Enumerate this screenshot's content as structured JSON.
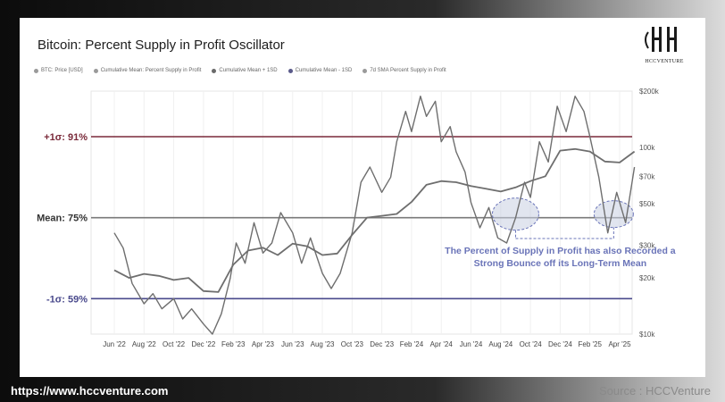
{
  "title": "Bitcoin: Percent Supply in Profit Oscillator",
  "logo": {
    "text": "HCCVENTURE"
  },
  "legend": [
    {
      "label": "BTC: Price [USD]",
      "color": "#9a9a9a"
    },
    {
      "label": "Cumulative Mean: Percent Supply in Profit",
      "color": "#9a9a9a"
    },
    {
      "label": "Cumulative Mean + 1SD",
      "color": "#6a6a6a"
    },
    {
      "label": "Cumulative Mean - 1SD",
      "color": "#5a5a8a"
    },
    {
      "label": "7d SMA Percent Supply in Profit",
      "color": "#9a9a9a"
    }
  ],
  "footer": {
    "url": "https://www.hccventure.com",
    "source": "Source : HCCVenture"
  },
  "colors": {
    "upper_band": "#7a2a3a",
    "mean": "#7a7a7a",
    "lower_band": "#4a4a8c",
    "series": "#6e6e6e",
    "annotation": "#6a74b8",
    "highlight_fill": "#c8d0e2"
  },
  "chart_data": {
    "type": "line",
    "title": "Bitcoin: Percent Supply in Profit Oscillator",
    "x_ticks": [
      "Jun '22",
      "Aug '22",
      "Oct '22",
      "Dec '22",
      "Feb '23",
      "Apr '23",
      "Jun '23",
      "Aug '23",
      "Oct '23",
      "Dec '23",
      "Feb '24",
      "Apr '24",
      "Jun '24",
      "Aug '24",
      "Oct '24",
      "Dec '24",
      "Feb '25",
      "Apr '25"
    ],
    "left_axis": {
      "labels": [
        "+1σ: 91%",
        "Mean: 75%",
        "-1σ: 59%"
      ],
      "levels": [
        91,
        75,
        59
      ],
      "range": [
        52,
        100
      ]
    },
    "right_axis": {
      "scale": "log",
      "ticks": [
        "$200k",
        "100k",
        "$70k",
        "$50k",
        "$30k",
        "$20k",
        "$10k"
      ],
      "tick_values": [
        200000,
        100000,
        70000,
        50000,
        30000,
        20000,
        10000
      ],
      "range": [
        10000,
        200000
      ]
    },
    "series": [
      {
        "name": "7d SMA Percent Supply in Profit",
        "axis": "left",
        "x_index": [
          0,
          0.3,
          0.6,
          1.0,
          1.3,
          1.6,
          2.0,
          2.3,
          2.6,
          3.0,
          3.3,
          3.6,
          3.9,
          4.1,
          4.4,
          4.7,
          5.0,
          5.3,
          5.6,
          6.0,
          6.3,
          6.6,
          7.0,
          7.3,
          7.6,
          8.0,
          8.3,
          8.6,
          9.0,
          9.3,
          9.5,
          9.8,
          10.0,
          10.3,
          10.5,
          10.8,
          11.0,
          11.3,
          11.5,
          11.8,
          12.0,
          12.3,
          12.6,
          12.9,
          13.2,
          13.5,
          13.8,
          14.0,
          14.3,
          14.6,
          14.9,
          15.2,
          15.5,
          15.8,
          16.0,
          16.3,
          16.6,
          16.9,
          17.2,
          17.5
        ],
        "values": [
          72,
          69,
          62,
          58,
          60,
          57,
          59,
          55,
          57,
          54,
          52,
          56,
          63,
          70,
          66,
          74,
          68,
          70,
          76,
          72,
          66,
          71,
          64,
          61,
          64,
          72,
          82,
          85,
          80,
          83,
          90,
          96,
          92,
          99,
          95,
          98,
          90,
          93,
          88,
          84,
          78,
          73,
          77,
          71,
          70,
          75,
          82,
          79,
          90,
          86,
          97,
          92,
          99,
          96,
          91,
          83,
          72,
          80,
          74,
          85
        ]
      },
      {
        "name": "BTC: Price [USD]",
        "axis": "right",
        "x_index": [
          0,
          0.5,
          1.0,
          1.5,
          2.0,
          2.5,
          3.0,
          3.5,
          4.0,
          4.5,
          5.0,
          5.5,
          6.0,
          6.5,
          7.0,
          7.5,
          8.0,
          8.5,
          9.0,
          9.5,
          10.0,
          10.5,
          11.0,
          11.5,
          12.0,
          12.5,
          13.0,
          13.5,
          14.0,
          14.5,
          15.0,
          15.5,
          16.0,
          16.5,
          17.0,
          17.5
        ],
        "values": [
          22000,
          20000,
          21000,
          20500,
          19500,
          20000,
          17000,
          16800,
          23500,
          28000,
          29000,
          26500,
          30500,
          29500,
          26500,
          27000,
          34000,
          42000,
          43000,
          44000,
          51000,
          63000,
          66000,
          65000,
          62000,
          60000,
          58000,
          61000,
          66000,
          70000,
          96000,
          98000,
          95000,
          84000,
          83000,
          95000
        ]
      }
    ],
    "annotation": "The Percent of Supply in Profit has also Recorded a Strong Bounce off its Long-Term Mean"
  }
}
